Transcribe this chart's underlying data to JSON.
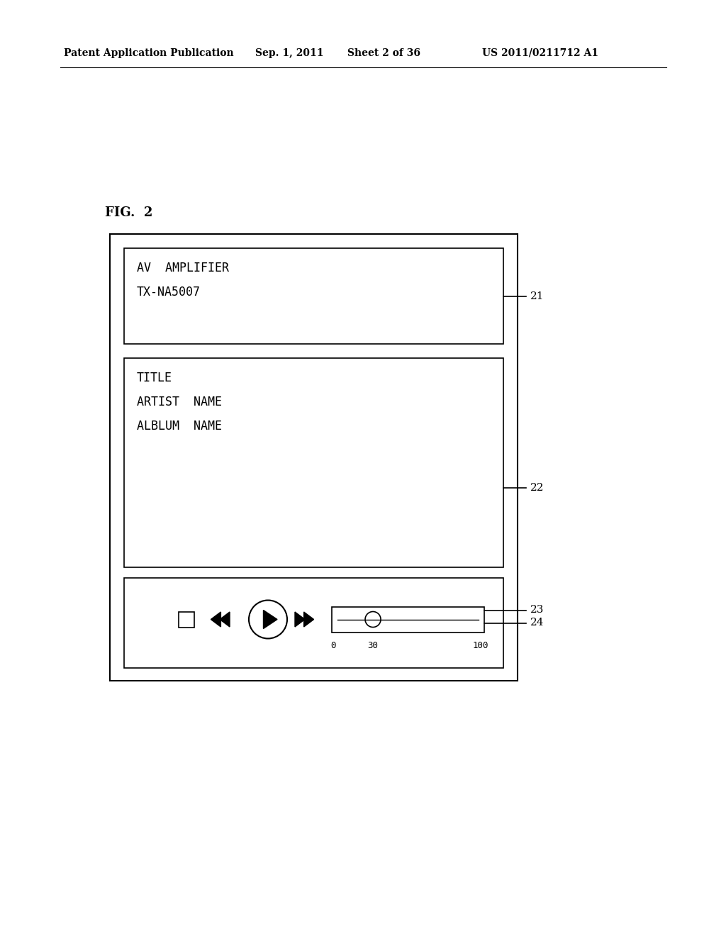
{
  "bg_color": "#ffffff",
  "header_text": "Patent Application Publication",
  "header_date": "Sep. 1, 2011",
  "header_sheet": "Sheet 2 of 36",
  "header_patent": "US 2011/0211712 A1",
  "fig_label": "FIG.  2",
  "box1_text_line1": "AV  AMPLIFIER",
  "box1_text_line2": "TX-NA5007",
  "box2_text_line1": "TITLE",
  "box2_text_line2": "ARTIST  NAME",
  "box2_text_line3": "ALBLUM  NAME",
  "label_21": "21",
  "label_22": "22",
  "label_23": "23",
  "label_24": "24",
  "slider_labels": [
    "0",
    "30",
    "100"
  ]
}
